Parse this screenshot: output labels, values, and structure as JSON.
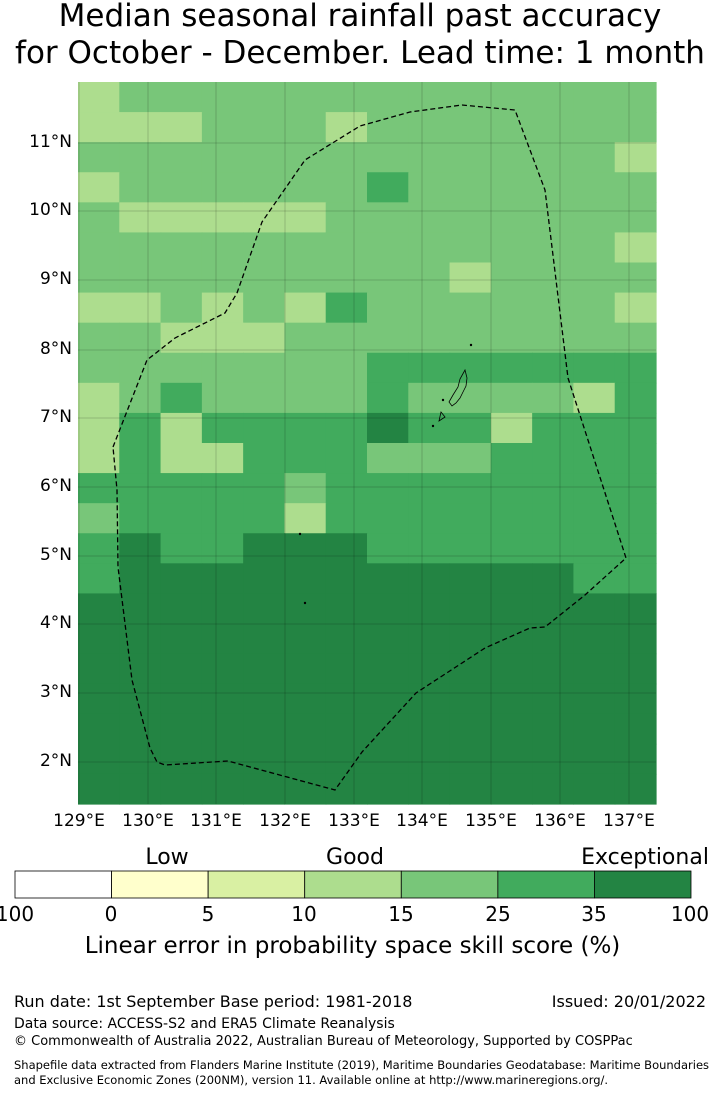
{
  "title": {
    "line1": "Median seasonal rainfall past accuracy",
    "line2": "for October - December. Lead time: 1 month"
  },
  "map": {
    "colors": [
      "#ffffff",
      "#ffffcc",
      "#d9f0a3",
      "#addd8e",
      "#78c679",
      "#41ab5d",
      "#238443"
    ],
    "lat_labels": [
      "11°N",
      "10°N",
      "9°N",
      "8°N",
      "7°N",
      "6°N",
      "5°N",
      "4°N",
      "3°N",
      "2°N"
    ],
    "lon_labels": [
      "129°E",
      "130°E",
      "131°E",
      "132°E",
      "133°E",
      "134°E",
      "135°E",
      "136°E",
      "137°E"
    ],
    "grid": [
      "L4444444444444",
      "LLL444L4444444",
      "4444444444444L",
      "L4444445444444",
      "4LLLLL44444444",
      "4444444444444L",
      "444444444L4444",
      "LL4L4L5444444L",
      "44LLL444444444",
      "44444445555555",
      "L45444454444L5",
      "L5L5555655L555",
      "L5LL5554445555",
      "55555455555555",
      "45555L55555555",
      "56556665555555",
      "56666666666655",
      "66666666666666",
      "66666666666666",
      "66666666666666",
      "66666666666666",
      "66666666666666",
      "66666666666666",
      "66666666666666"
    ]
  },
  "legend": {
    "categories": [
      "Low",
      "Good",
      "Exceptional"
    ],
    "ticks": [
      "100",
      "0",
      "5",
      "10",
      "15",
      "25",
      "35",
      "100"
    ],
    "label": "Linear error in probability space skill score (%)"
  },
  "footer": {
    "run": "Run date: 1st September  Base period: 1981-2018",
    "issued": "Issued: 20/01/2022",
    "source": "Data source: ACCESS-S2 and ERA5 Climate Reanalysis",
    "copyright": "© Commonwealth of Australia 2022, Australian Bureau of Meteorology, Supported by COSPPac",
    "shapefile": "Shapefile data extracted from Flanders Marine Institute (2019), Maritime Boundaries Geodatabase: Maritime Boundaries and Exclusive Economic Zones (200NM), version 11. Available online at http://www.marineregions.org/."
  }
}
